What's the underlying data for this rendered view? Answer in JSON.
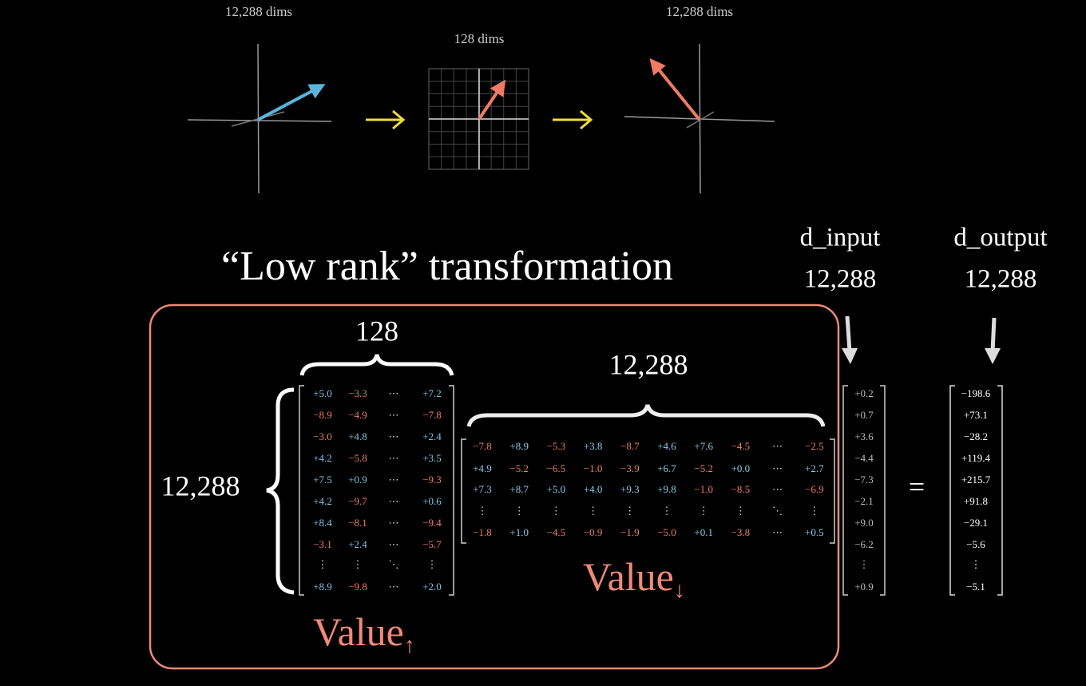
{
  "plots": [
    {
      "label": "12,288 dims"
    },
    {
      "label": "128 dims"
    },
    {
      "label": "12,288 dims"
    }
  ],
  "title": "“Low rank” transformation",
  "input": {
    "label": "d_input",
    "size": "12,288",
    "values": [
      "+0.2",
      "+0.7",
      "+3.6",
      "−4.4",
      "−7.3",
      "−2.1",
      "+9.0",
      "−6.2",
      "⋮",
      "+0.9"
    ]
  },
  "output": {
    "label": "d_output",
    "size": "12,288",
    "values": [
      "−198.6",
      "+73.1",
      "−28.2",
      "+119.4",
      "+215.7",
      "+91.8",
      "−29.1",
      "−5.6",
      "⋮",
      "−5.1"
    ]
  },
  "equals": "=",
  "value_up": {
    "cols_label": "128",
    "rows_label": "12,288",
    "label": {
      "text": "Value",
      "sub": "↑"
    },
    "rows": [
      [
        "+5.0",
        "−3.3",
        "⋯",
        "+7.2"
      ],
      [
        "−8.9",
        "−4.9",
        "⋯",
        "−7.8"
      ],
      [
        "−3.0",
        "+4.8",
        "⋯",
        "+2.4"
      ],
      [
        "+4.2",
        "−5.8",
        "⋯",
        "+3.5"
      ],
      [
        "+7.5",
        "+0.9",
        "⋯",
        "−9.3"
      ],
      [
        "+4.2",
        "−9.7",
        "⋯",
        "+0.6"
      ],
      [
        "+8.4",
        "−8.1",
        "⋯",
        "−9.4"
      ],
      [
        "−3.1",
        "+2.4",
        "⋯",
        "−5.7"
      ],
      [
        "⋮",
        "⋮",
        "⋱",
        "⋮"
      ],
      [
        "+8.9",
        "−9.8",
        "⋯",
        "+2.0"
      ]
    ]
  },
  "value_down": {
    "cols_label": "12,288",
    "label": {
      "text": "Value",
      "sub": "↓"
    },
    "rows": [
      [
        "−7.8",
        "+8.9",
        "−5.3",
        "+3.8",
        "−8.7",
        "+4.6",
        "+7.6",
        "−4.5",
        "⋯",
        "−2.5"
      ],
      [
        "+4.9",
        "−5.2",
        "−6.5",
        "−1.0",
        "−3.9",
        "+6.7",
        "−5.2",
        "+0.0",
        "⋯",
        "+2.7"
      ],
      [
        "+7.3",
        "+8.7",
        "+5.0",
        "+4.0",
        "+9.3",
        "+9.8",
        "−1.0",
        "−8.5",
        "⋯",
        "−6.9"
      ],
      [
        "⋮",
        "⋮",
        "⋮",
        "⋮",
        "⋮",
        "⋮",
        "⋮",
        "⋮",
        "⋱",
        "⋮"
      ],
      [
        "−1.8",
        "+1.0",
        "−4.5",
        "−0.9",
        "−1.9",
        "−5.0",
        "+0.1",
        "−3.8",
        "⋯",
        "+0.5"
      ]
    ]
  }
}
